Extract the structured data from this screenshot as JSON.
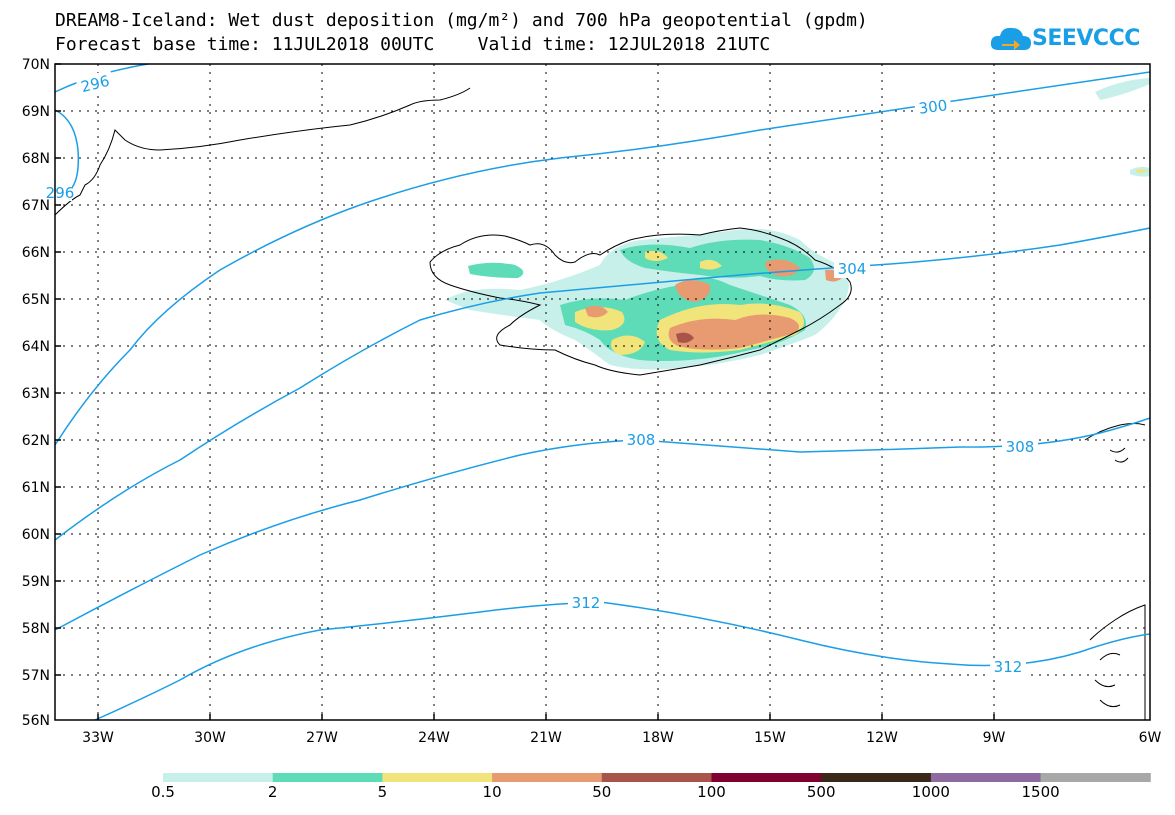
{
  "title_line1": "DREAM8-Iceland: Wet dust deposition (mg/m²) and 700 hPa geopotential (gpdm)",
  "title_line2": "Forecast base time: 11JUL2018 00UTC    Valid time: 12JUL2018 21UTC",
  "logo_text": "SEEVCCC",
  "lat_labels": [
    "70N",
    "69N",
    "68N",
    "67N",
    "66N",
    "65N",
    "64N",
    "63N",
    "62N",
    "61N",
    "60N",
    "59N",
    "58N",
    "57N",
    "56N"
  ],
  "lon_labels": [
    "33W",
    "30W",
    "27W",
    "24W",
    "21W",
    "18W",
    "15W",
    "12W",
    "9W",
    "6W"
  ],
  "contour_labels": [
    {
      "text": "296",
      "key": "c296a"
    },
    {
      "text": "296",
      "key": "c296b"
    },
    {
      "text": "300",
      "key": "c300"
    },
    {
      "text": "304",
      "key": "c304"
    },
    {
      "text": "308",
      "key": "c308a"
    },
    {
      "text": "308",
      "key": "c308b"
    },
    {
      "text": "312",
      "key": "c312a"
    },
    {
      "text": "312",
      "key": "c312b"
    }
  ],
  "colorbar": {
    "colors": [
      "#c8f0ea",
      "#5edcb8",
      "#f0e47a",
      "#e89a70",
      "#a85448",
      "#800030",
      "#3a2818",
      "#8e6aa0",
      "#a8a8a8"
    ],
    "labels": [
      "0.5",
      "2",
      "5",
      "10",
      "50",
      "100",
      "500",
      "1000",
      "1500"
    ]
  },
  "colors": {
    "contour": "#1a9ee6",
    "grid": "#000000"
  }
}
